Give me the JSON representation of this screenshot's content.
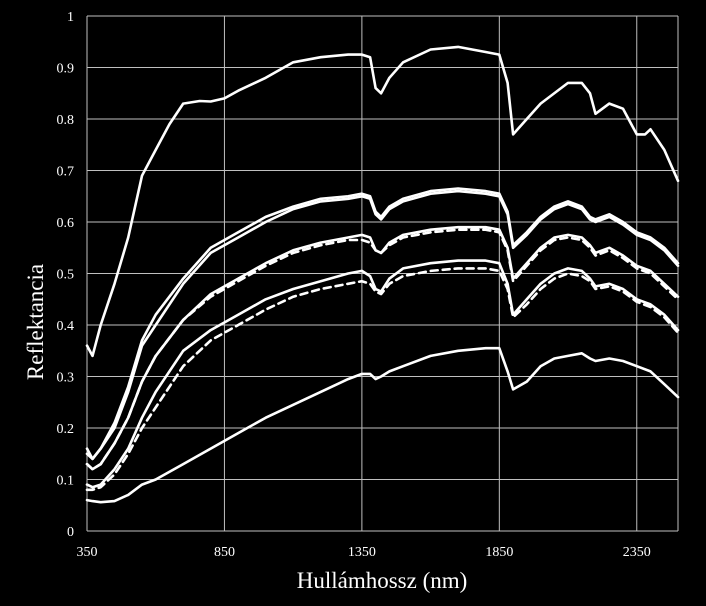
{
  "chart_data": {
    "type": "line",
    "xlabel": "Hullámhossz (nm)",
    "ylabel": "Reflektancia",
    "xlim": [
      350,
      2500
    ],
    "ylim": [
      0,
      1
    ],
    "xticks": [
      350,
      850,
      1350,
      1850,
      2350
    ],
    "yticks": [
      0,
      0.1,
      0.2,
      0.3,
      0.4,
      0.5,
      0.6,
      0.7,
      0.8,
      0.9,
      1
    ],
    "grid": true,
    "background": "#000000",
    "line_color": "#ffffff",
    "series": [
      {
        "style": "solid",
        "x": [
          350,
          370,
          400,
          450,
          500,
          550,
          600,
          650,
          700,
          760,
          800,
          850,
          900,
          1000,
          1100,
          1200,
          1300,
          1350,
          1380,
          1400,
          1420,
          1450,
          1500,
          1600,
          1700,
          1800,
          1850,
          1880,
          1900,
          1950,
          2000,
          2100,
          2150,
          2180,
          2200,
          2250,
          2300,
          2320,
          2350,
          2380,
          2400,
          2450,
          2500
        ],
        "y": [
          0.36,
          0.34,
          0.4,
          0.48,
          0.57,
          0.69,
          0.74,
          0.79,
          0.83,
          0.835,
          0.834,
          0.84,
          0.855,
          0.88,
          0.91,
          0.92,
          0.925,
          0.925,
          0.92,
          0.86,
          0.85,
          0.88,
          0.91,
          0.935,
          0.94,
          0.93,
          0.925,
          0.87,
          0.77,
          0.8,
          0.83,
          0.87,
          0.87,
          0.85,
          0.81,
          0.83,
          0.82,
          0.8,
          0.77,
          0.77,
          0.78,
          0.74,
          0.68
        ]
      },
      {
        "style": "solid",
        "x": [
          350,
          370,
          400,
          450,
          500,
          550,
          600,
          700,
          800,
          900,
          1000,
          1100,
          1200,
          1300,
          1350,
          1380,
          1400,
          1420,
          1450,
          1500,
          1600,
          1700,
          1800,
          1850,
          1880,
          1900,
          1950,
          2000,
          2050,
          2100,
          2150,
          2180,
          2200,
          2250,
          2300,
          2350,
          2400,
          2450,
          2500
        ],
        "y": [
          0.16,
          0.14,
          0.16,
          0.21,
          0.28,
          0.37,
          0.42,
          0.49,
          0.55,
          0.58,
          0.61,
          0.63,
          0.645,
          0.65,
          0.655,
          0.65,
          0.62,
          0.61,
          0.63,
          0.645,
          0.66,
          0.665,
          0.66,
          0.655,
          0.62,
          0.555,
          0.58,
          0.61,
          0.63,
          0.64,
          0.63,
          0.61,
          0.605,
          0.615,
          0.6,
          0.58,
          0.57,
          0.55,
          0.52
        ]
      },
      {
        "style": "solid",
        "x": [
          350,
          370,
          400,
          450,
          500,
          550,
          600,
          700,
          800,
          900,
          1000,
          1100,
          1200,
          1300,
          1350,
          1380,
          1400,
          1420,
          1450,
          1500,
          1600,
          1700,
          1800,
          1850,
          1880,
          1900,
          1950,
          2000,
          2050,
          2100,
          2150,
          2180,
          2200,
          2250,
          2300,
          2350,
          2400,
          2450,
          2500
        ],
        "y": [
          0.15,
          0.14,
          0.16,
          0.2,
          0.27,
          0.36,
          0.4,
          0.48,
          0.54,
          0.57,
          0.6,
          0.625,
          0.64,
          0.645,
          0.65,
          0.645,
          0.615,
          0.605,
          0.625,
          0.64,
          0.655,
          0.66,
          0.655,
          0.65,
          0.615,
          0.55,
          0.575,
          0.605,
          0.625,
          0.635,
          0.625,
          0.605,
          0.6,
          0.61,
          0.595,
          0.575,
          0.565,
          0.545,
          0.515
        ]
      },
      {
        "style": "solid",
        "x": [
          350,
          370,
          400,
          450,
          500,
          550,
          600,
          700,
          800,
          900,
          1000,
          1100,
          1200,
          1300,
          1350,
          1380,
          1400,
          1420,
          1450,
          1500,
          1600,
          1700,
          1800,
          1850,
          1880,
          1900,
          1950,
          2000,
          2050,
          2100,
          2150,
          2180,
          2200,
          2250,
          2300,
          2350,
          2400,
          2450,
          2500
        ],
        "y": [
          0.13,
          0.12,
          0.13,
          0.17,
          0.22,
          0.29,
          0.34,
          0.41,
          0.46,
          0.49,
          0.52,
          0.545,
          0.56,
          0.57,
          0.575,
          0.57,
          0.545,
          0.54,
          0.56,
          0.575,
          0.585,
          0.59,
          0.59,
          0.585,
          0.55,
          0.49,
          0.52,
          0.55,
          0.57,
          0.575,
          0.57,
          0.555,
          0.54,
          0.55,
          0.535,
          0.515,
          0.505,
          0.48,
          0.455
        ]
      },
      {
        "style": "dashed",
        "x": [
          350,
          370,
          400,
          450,
          500,
          550,
          600,
          700,
          800,
          900,
          1000,
          1100,
          1200,
          1300,
          1350,
          1380,
          1400,
          1420,
          1450,
          1500,
          1600,
          1700,
          1800,
          1850,
          1880,
          1900,
          1950,
          2000,
          2050,
          2100,
          2150,
          2180,
          2200,
          2250,
          2300,
          2350,
          2400,
          2450,
          2500
        ],
        "y": [
          0.13,
          0.12,
          0.13,
          0.17,
          0.22,
          0.29,
          0.34,
          0.41,
          0.455,
          0.485,
          0.515,
          0.54,
          0.555,
          0.565,
          0.565,
          0.56,
          0.545,
          0.54,
          0.555,
          0.57,
          0.58,
          0.585,
          0.585,
          0.58,
          0.545,
          0.485,
          0.515,
          0.545,
          0.565,
          0.57,
          0.565,
          0.55,
          0.535,
          0.545,
          0.53,
          0.51,
          0.5,
          0.475,
          0.45
        ]
      },
      {
        "style": "solid",
        "x": [
          350,
          370,
          400,
          450,
          500,
          550,
          600,
          700,
          800,
          900,
          1000,
          1100,
          1200,
          1300,
          1350,
          1380,
          1400,
          1420,
          1450,
          1500,
          1600,
          1700,
          1800,
          1850,
          1880,
          1900,
          1950,
          2000,
          2050,
          2100,
          2150,
          2180,
          2200,
          2250,
          2300,
          2350,
          2400,
          2450,
          2500
        ],
        "y": [
          0.09,
          0.085,
          0.09,
          0.12,
          0.16,
          0.22,
          0.27,
          0.35,
          0.39,
          0.42,
          0.45,
          0.47,
          0.485,
          0.5,
          0.505,
          0.495,
          0.47,
          0.465,
          0.49,
          0.51,
          0.52,
          0.525,
          0.525,
          0.52,
          0.48,
          0.42,
          0.45,
          0.48,
          0.5,
          0.51,
          0.505,
          0.49,
          0.475,
          0.48,
          0.47,
          0.45,
          0.44,
          0.42,
          0.39
        ]
      },
      {
        "style": "dashed",
        "x": [
          350,
          370,
          400,
          450,
          500,
          550,
          600,
          700,
          800,
          900,
          1000,
          1100,
          1200,
          1300,
          1350,
          1380,
          1400,
          1420,
          1450,
          1500,
          1600,
          1700,
          1800,
          1850,
          1880,
          1900,
          1950,
          2000,
          2050,
          2100,
          2150,
          2180,
          2200,
          2250,
          2300,
          2350,
          2400,
          2450,
          2500
        ],
        "y": [
          0.08,
          0.08,
          0.085,
          0.11,
          0.15,
          0.2,
          0.24,
          0.32,
          0.37,
          0.4,
          0.43,
          0.455,
          0.47,
          0.48,
          0.485,
          0.48,
          0.465,
          0.46,
          0.48,
          0.495,
          0.505,
          0.51,
          0.51,
          0.505,
          0.47,
          0.415,
          0.44,
          0.47,
          0.49,
          0.5,
          0.495,
          0.485,
          0.47,
          0.475,
          0.465,
          0.445,
          0.435,
          0.415,
          0.385
        ]
      },
      {
        "style": "solid",
        "x": [
          350,
          370,
          400,
          450,
          500,
          550,
          600,
          700,
          800,
          900,
          1000,
          1100,
          1200,
          1300,
          1350,
          1380,
          1400,
          1420,
          1450,
          1500,
          1600,
          1700,
          1800,
          1850,
          1880,
          1900,
          1950,
          2000,
          2050,
          2100,
          2150,
          2180,
          2200,
          2250,
          2300,
          2350,
          2400,
          2450,
          2500
        ],
        "y": [
          0.06,
          0.058,
          0.056,
          0.058,
          0.07,
          0.09,
          0.1,
          0.13,
          0.16,
          0.19,
          0.22,
          0.245,
          0.27,
          0.295,
          0.305,
          0.305,
          0.295,
          0.3,
          0.31,
          0.32,
          0.34,
          0.35,
          0.355,
          0.355,
          0.31,
          0.275,
          0.29,
          0.32,
          0.335,
          0.34,
          0.345,
          0.335,
          0.33,
          0.335,
          0.33,
          0.32,
          0.31,
          0.285,
          0.26
        ]
      }
    ]
  }
}
